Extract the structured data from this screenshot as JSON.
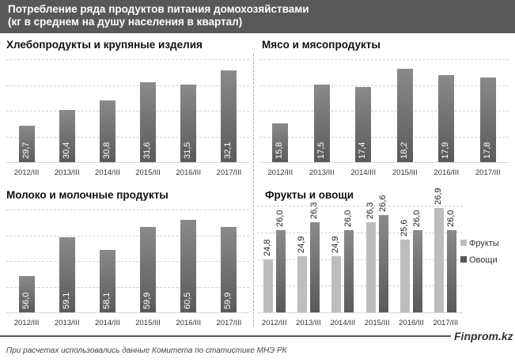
{
  "header": {
    "title_line1": "Потребление ряда продуктов питания домохозяйствами",
    "title_line2": "(кг в среднем на душу  населения в квартал)"
  },
  "footer": {
    "source": "При расчетах использовались данные Комитета по статистике МНЭ РК",
    "brand": "Finprom.kz"
  },
  "chart_data": [
    {
      "type": "bar",
      "title": "Хлебопродукты  и крупяные изделия",
      "categories": [
        "2012/III",
        "2013/III",
        "2014/III",
        "2015/III",
        "2016/III",
        "2017/III"
      ],
      "values": [
        29.7,
        30.4,
        30.8,
        31.6,
        31.5,
        32.1
      ],
      "labels": [
        "29,7",
        "30,4",
        "30,8",
        "31,6",
        "31,5",
        "32,1"
      ],
      "ylim": [
        28.1,
        32.6
      ],
      "grid": true
    },
    {
      "type": "bar",
      "title": "Мясо и мясопродукты",
      "categories": [
        "2012/III",
        "2013/III",
        "2014/III",
        "2015/III",
        "2016/III",
        "2017/III"
      ],
      "values": [
        15.8,
        17.5,
        17.4,
        18.2,
        17.9,
        17.8
      ],
      "labels": [
        "15,8",
        "17,5",
        "17,4",
        "18,2",
        "17,9",
        "17,8"
      ],
      "ylim": [
        14.1,
        18.6
      ],
      "grid": true
    },
    {
      "type": "bar",
      "title": "Молоко и молочные  продукты",
      "categories": [
        "2012/III",
        "2013/III",
        "2014/III",
        "2015/III",
        "2016/III",
        "2017/III"
      ],
      "values": [
        56.0,
        59.1,
        58.1,
        59.9,
        60.5,
        59.9
      ],
      "labels": [
        "56,0",
        "59,1",
        "58,1",
        "59,9",
        "60,5",
        "59,9"
      ],
      "ylim": [
        53.1,
        61.3
      ],
      "grid": true
    },
    {
      "type": "bar",
      "title": "Фрукты и овощи",
      "categories": [
        "2012/III",
        "2013/III",
        "2014/III",
        "2015/III",
        "2016/III",
        "2017/III"
      ],
      "series": [
        {
          "name": "Фрукты",
          "values": [
            24.8,
            24.9,
            24.9,
            26.3,
            25.6,
            26.9
          ],
          "labels": [
            "24,8",
            "24,9",
            "24,9",
            "26,3",
            "25,6",
            "26,9"
          ],
          "color": "#bdbdbd"
        },
        {
          "name": "Овощи",
          "values": [
            26.0,
            26.3,
            26.0,
            26.6,
            26.0,
            26.0
          ],
          "labels": [
            "26,0",
            "26,3",
            "26,0",
            "26,6",
            "26,0",
            "26,0"
          ],
          "color": "#666666"
        }
      ],
      "ylim": [
        22.6,
        27.0
      ],
      "grid": true,
      "legend": "right"
    }
  ]
}
